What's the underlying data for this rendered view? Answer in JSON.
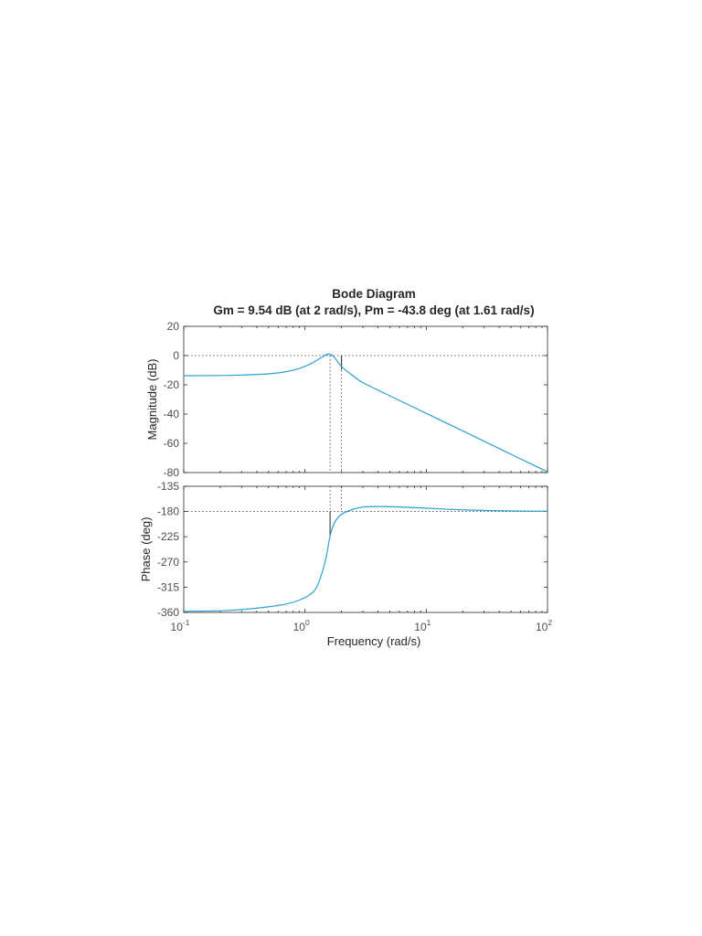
{
  "chart_data": {
    "type": "line",
    "title": "Bode Diagram",
    "subtitle": "Gm = 9.54 dB (at 2 rad/s),  Pm = -43.8 deg (at 1.61 rad/s)",
    "xlabel": "Frequency  (rad/s)",
    "x_scale": "log",
    "xlim": [
      0.1,
      100
    ],
    "x_ticks": [
      {
        "value": 0.1,
        "base": "10",
        "exponent": "-1"
      },
      {
        "value": 1,
        "base": "10",
        "exponent": "0"
      },
      {
        "value": 10,
        "base": "10",
        "exponent": "1"
      },
      {
        "value": 100,
        "base": "10",
        "exponent": "2"
      }
    ],
    "grid": false,
    "line_color": "#2c9fd6",
    "margin_lines": {
      "gain_crossover_frequency": 1.61,
      "phase_crossover_frequency": 2,
      "gain_margin_db": 9.54,
      "phase_margin_deg": -43.8
    },
    "magnitude": {
      "ylabel": "Magnitude (dB)",
      "ylim": [
        -80,
        20
      ],
      "y_ticks": [
        20,
        0,
        -20,
        -40,
        -60,
        -80
      ],
      "reference_line": 0,
      "x": [
        0.1,
        0.2,
        0.3,
        0.5,
        0.7,
        0.9,
        1.1,
        1.25,
        1.4,
        1.5,
        1.58,
        1.68,
        1.8,
        2.0,
        2.5,
        3,
        5,
        10,
        20,
        50,
        100
      ],
      "y": [
        -13.8,
        -13.6,
        -13.3,
        -12.5,
        -11.0,
        -8.8,
        -5.8,
        -3.3,
        -0.8,
        0.6,
        1.0,
        0.1,
        -2.5,
        -7.5,
        -14.0,
        -18.5,
        -27.5,
        -39.5,
        -51.5,
        -67.5,
        -79.5
      ]
    },
    "phase": {
      "ylabel": "Phase (deg)",
      "ylim": [
        -360,
        -135
      ],
      "y_ticks": [
        -135,
        -180,
        -225,
        -270,
        -315,
        -360
      ],
      "reference_line": -180,
      "x": [
        0.1,
        0.2,
        0.3,
        0.5,
        0.7,
        0.9,
        1.1,
        1.25,
        1.4,
        1.5,
        1.61,
        1.75,
        2.0,
        2.5,
        3,
        4,
        5,
        7,
        10,
        20,
        50,
        100
      ],
      "y": [
        -358,
        -357,
        -355,
        -350,
        -345,
        -338,
        -328,
        -315,
        -285,
        -260,
        -223.8,
        -200,
        -185,
        -176,
        -172,
        -171,
        -171.5,
        -172.5,
        -174,
        -177,
        -179,
        -179.5
      ]
    }
  }
}
